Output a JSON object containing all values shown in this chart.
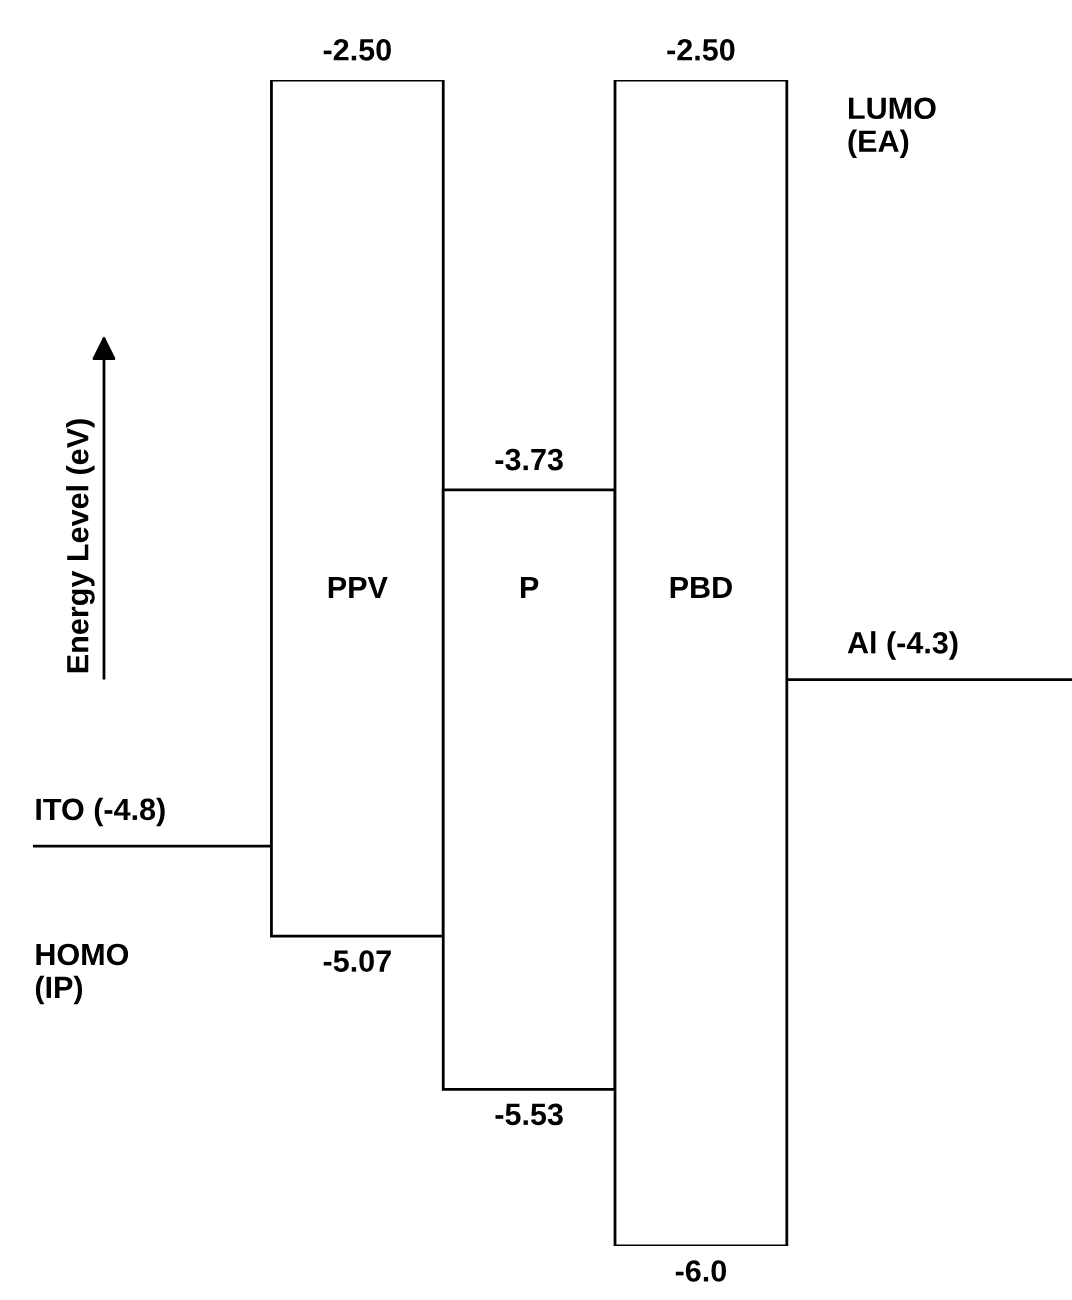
{
  "chart_data": {
    "type": "bar",
    "categories": [
      "PPV",
      "P",
      "PBD"
    ],
    "base": [
      -5.07,
      -5.53,
      -6.0
    ],
    "values": [
      2.57,
      1.8,
      3.5
    ],
    "color": "#ffffff",
    "ylim": [
      -6.0,
      -2.5
    ],
    "ref_lines": [
      {
        "axis": "y",
        "value": -4.8,
        "label": "ITO (-4.8)"
      },
      {
        "axis": "y",
        "value": -4.3,
        "label": "Al (-4.3)"
      }
    ],
    "annotations": [
      {
        "text": "-2.50",
        "x": "PPV",
        "y": -2.5
      },
      {
        "text": "-5.07",
        "x": "PPV",
        "y": -5.07
      },
      {
        "text": "-3.73",
        "x": "P",
        "y": -3.73
      },
      {
        "text": "-5.53",
        "x": "P",
        "y": -5.53
      },
      {
        "text": "-2.50",
        "x": "PBD",
        "y": -2.5
      },
      {
        "text": "-6.0",
        "x": "PBD",
        "y": -6.0
      },
      "LUMO\n(EA)",
      "HOMO\n(IP)",
      "Energy Level (eV)"
    ]
  }
}
